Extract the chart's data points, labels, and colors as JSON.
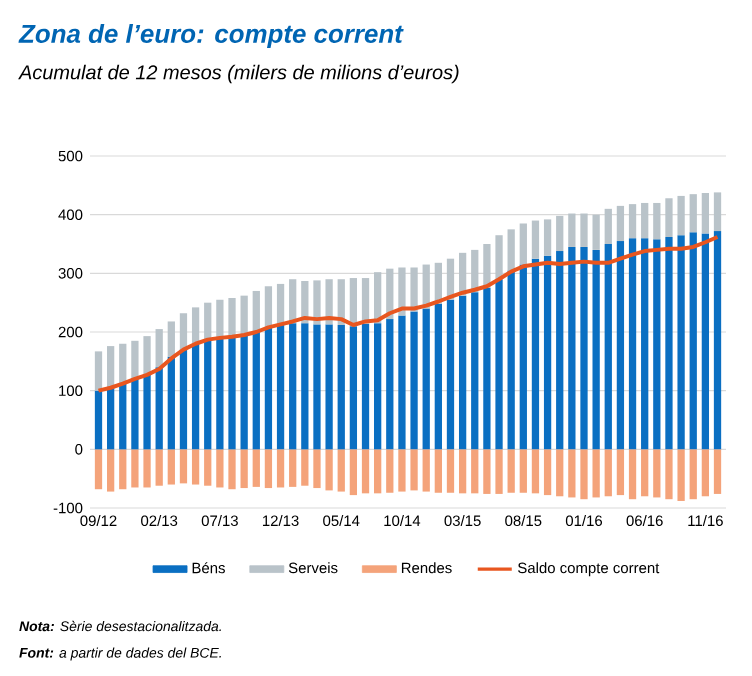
{
  "chart_data": {
    "type": "bar",
    "stacked": true,
    "title": "Zona de l’euro: compte corrent",
    "subtitle": "Acumulat de 12 mesos (milers de milions d’euros)",
    "categories": [
      "09/12",
      null,
      null,
      null,
      null,
      "02/13",
      null,
      null,
      null,
      null,
      "07/13",
      null,
      null,
      null,
      null,
      "12/13",
      null,
      null,
      null,
      null,
      "05/14",
      null,
      null,
      null,
      null,
      "10/14",
      null,
      null,
      null,
      null,
      "03/15",
      null,
      null,
      null,
      null,
      "08/15",
      null,
      null,
      null,
      null,
      "01/16",
      null,
      null,
      null,
      null,
      "06/16",
      null,
      null,
      null,
      null,
      "11/16",
      null
    ],
    "series": [
      {
        "name": "Béns",
        "color": "#0a6fc2",
        "values": [
          100,
          105,
          112,
          120,
          128,
          140,
          158,
          170,
          180,
          185,
          188,
          190,
          195,
          200,
          208,
          212,
          215,
          215,
          213,
          213,
          212,
          210,
          214,
          215,
          222,
          228,
          235,
          240,
          248,
          255,
          262,
          268,
          275,
          290,
          305,
          315,
          325,
          330,
          338,
          345,
          345,
          340,
          350,
          355,
          360,
          360,
          358,
          362,
          365,
          370,
          368,
          372
        ]
      },
      {
        "name": "Serveis",
        "color": "#b9c3c9",
        "values": [
          67,
          71,
          68,
          65,
          65,
          65,
          60,
          62,
          62,
          65,
          67,
          68,
          67,
          70,
          70,
          70,
          75,
          72,
          75,
          77,
          78,
          82,
          78,
          87,
          86,
          82,
          75,
          75,
          70,
          70,
          73,
          72,
          75,
          75,
          70,
          70,
          65,
          62,
          60,
          57,
          57,
          60,
          60,
          60,
          58,
          60,
          62,
          66,
          67,
          65,
          69,
          66
        ]
      },
      {
        "name": "Rendes",
        "color": "#f4a37a",
        "values": [
          -68,
          -72,
          -68,
          -65,
          -65,
          -62,
          -60,
          -58,
          -60,
          -62,
          -65,
          -68,
          -66,
          -64,
          -66,
          -65,
          -64,
          -62,
          -66,
          -70,
          -72,
          -78,
          -75,
          -75,
          -74,
          -72,
          -70,
          -72,
          -74,
          -74,
          -75,
          -75,
          -76,
          -76,
          -74,
          -74,
          -75,
          -78,
          -80,
          -82,
          -85,
          -82,
          -80,
          -78,
          -85,
          -80,
          -82,
          -85,
          -88,
          -85,
          -80,
          -76
        ]
      },
      {
        "name": "Saldo compte corrent",
        "type": "line",
        "color": "#e8561f",
        "values": [
          100,
          105,
          112,
          120,
          127,
          137,
          155,
          170,
          180,
          187,
          190,
          192,
          195,
          200,
          208,
          213,
          218,
          224,
          222,
          224,
          222,
          212,
          218,
          220,
          232,
          240,
          240,
          245,
          252,
          260,
          267,
          272,
          278,
          290,
          303,
          312,
          315,
          318,
          316,
          318,
          320,
          318,
          318,
          325,
          332,
          338,
          340,
          342,
          342,
          345,
          353,
          362
        ]
      }
    ],
    "ylim": [
      -100,
      500
    ],
    "yticks": [
      -100,
      0,
      100,
      200,
      300,
      400,
      500
    ],
    "grid": "y",
    "legend": "bottom",
    "annotations": [
      "**Nota:** Sèrie desestacionalitzada.",
      "**Font:** a partir de dades del BCE."
    ]
  }
}
